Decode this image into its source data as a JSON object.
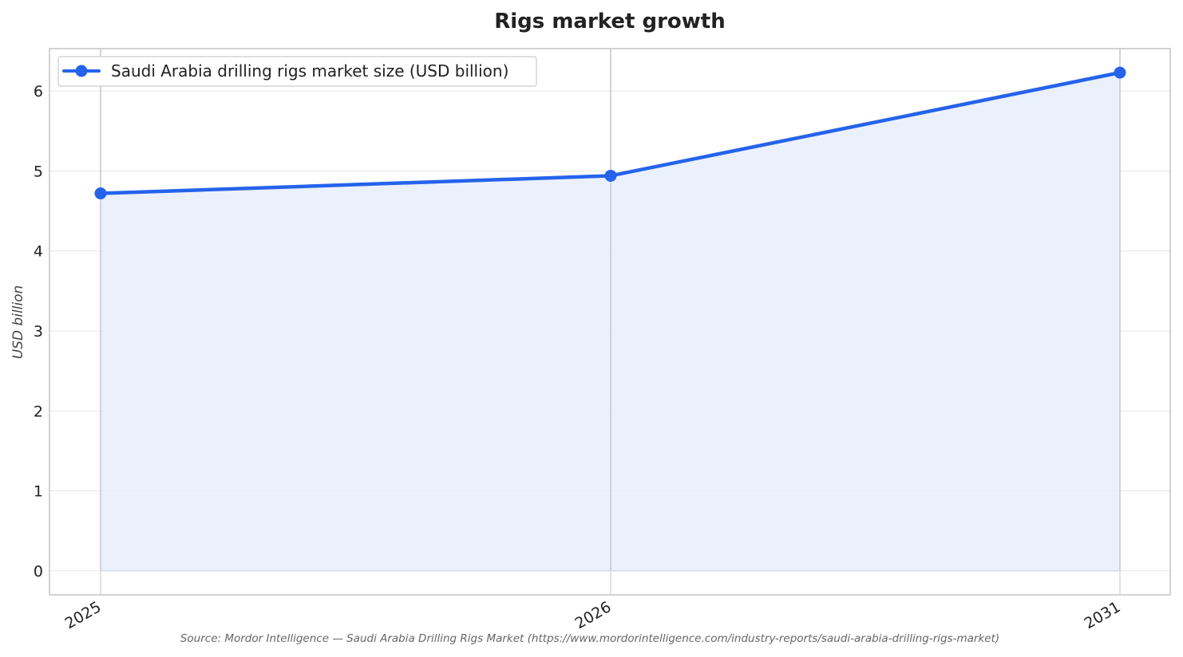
{
  "chart_data": {
    "type": "area",
    "title": "Rigs market growth",
    "xlabel": "",
    "ylabel": "USD billion",
    "categories": [
      "2025",
      "2026",
      "2031"
    ],
    "series": [
      {
        "name": "Saudi Arabia drilling rigs market size (USD billion)",
        "values": [
          4.72,
          4.94,
          6.23
        ]
      }
    ],
    "ylim": [
      -0.3,
      6.53
    ],
    "yticks": [
      0,
      1,
      2,
      3,
      4,
      5,
      6
    ],
    "grid": true,
    "legend_position": "top-left",
    "source": "Source: Mordor Intelligence — Saudi Arabia Drilling Rigs Market (https://www.mordorintelligence.com/industry-reports/saudi-arabia-drilling-rigs-market)",
    "colors": {
      "line": "#2563eb",
      "fill": "#e8eefb",
      "grid": "#e6e6e6",
      "frame": "#c4c4c4"
    }
  }
}
